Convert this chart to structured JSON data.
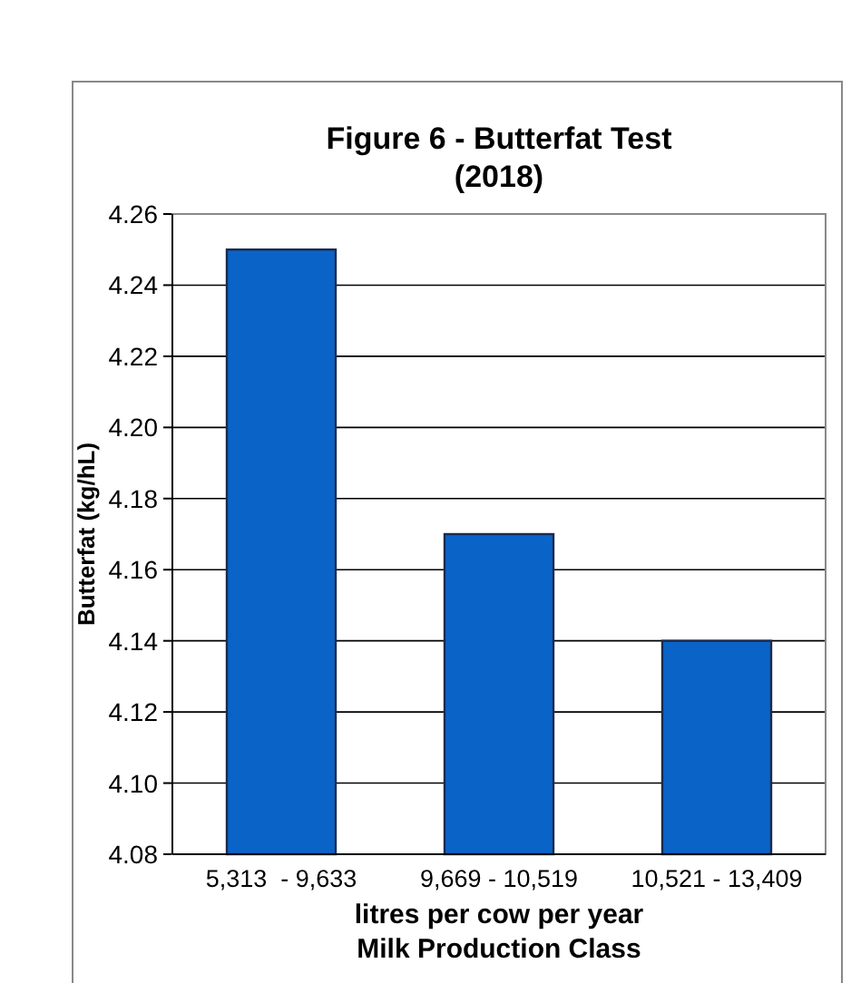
{
  "chart_data": {
    "type": "bar",
    "title": "Figure 6 - Butterfat Test\n(2018)",
    "xlabel": "litres per cow per year\nMilk Production Class",
    "ylabel": "Butterfat (kg/hL)",
    "categories": [
      "5,313  - 9,633",
      "9,669 - 10,519",
      "10,521 - 13,409"
    ],
    "values": [
      4.25,
      4.17,
      4.14
    ],
    "color": "#0a64c8",
    "ylim": [
      4.08,
      4.26
    ],
    "yticks": [
      4.08,
      {
        "value": 4.1,
        "label": "4.10"
      },
      4.12,
      4.14,
      4.16,
      4.18,
      {
        "value": 4.2,
        "label": "4.20"
      },
      4.22,
      4.24,
      4.26
    ],
    "grid": "y"
  }
}
